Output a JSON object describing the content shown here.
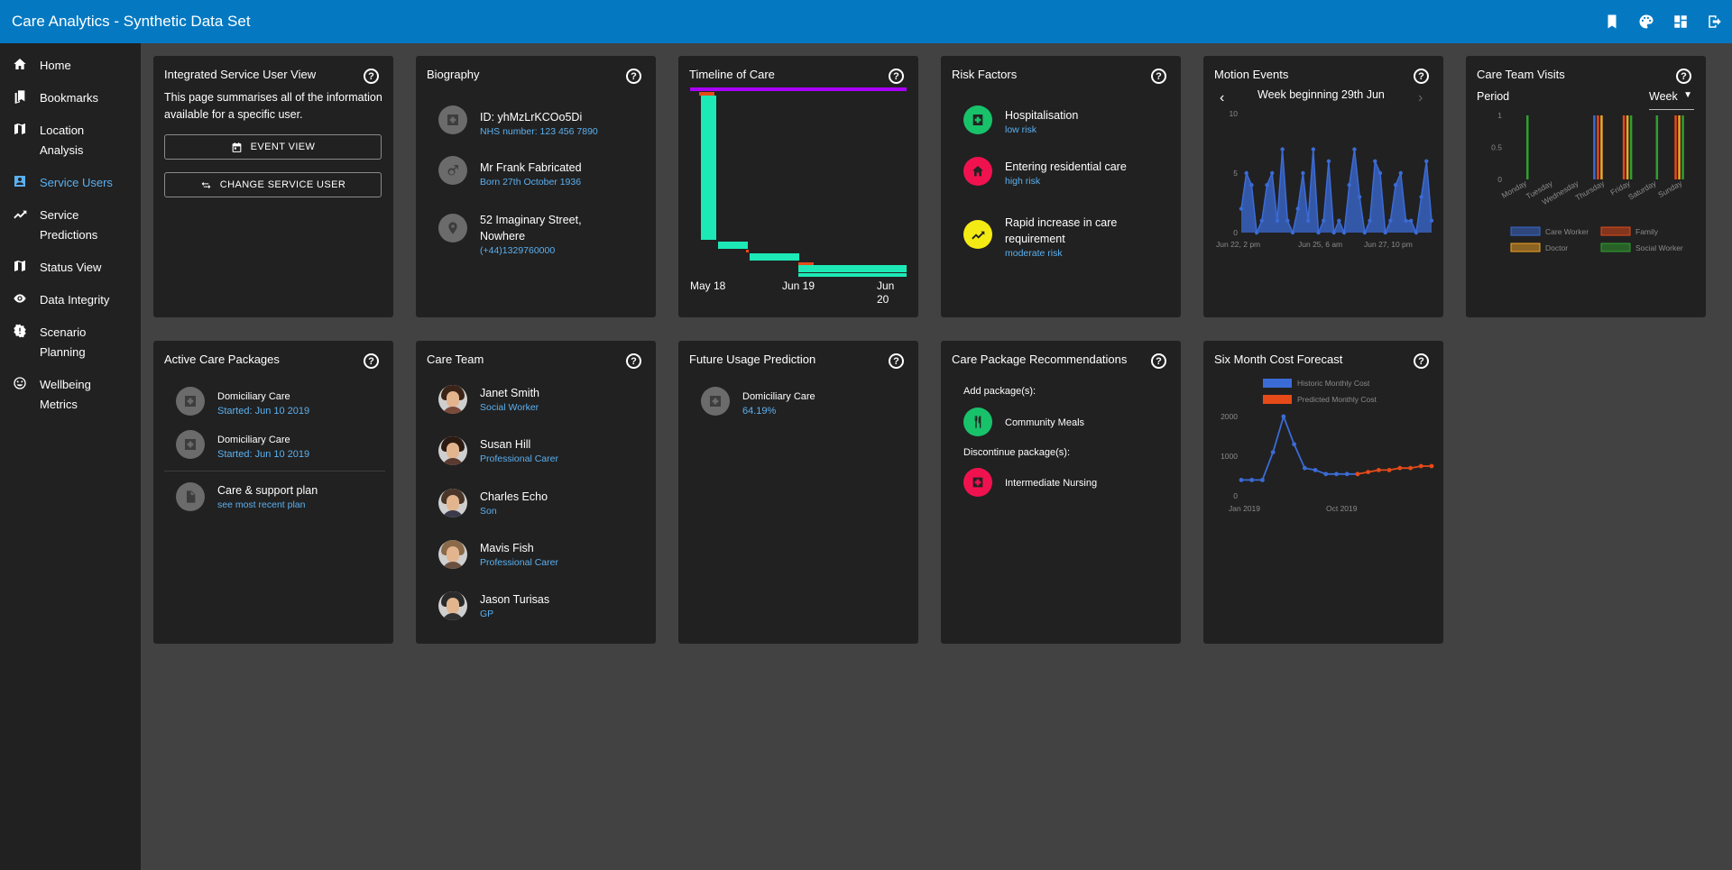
{
  "app": {
    "title": "Care Analytics - Synthetic Data Set"
  },
  "topbar": {
    "icons": [
      "bookmark-icon",
      "palette-icon",
      "dashboard-icon",
      "exit-icon"
    ]
  },
  "sidebar": {
    "items": [
      {
        "label": "Home",
        "icon": "home-icon",
        "active": false
      },
      {
        "label": "Bookmarks",
        "icon": "bookmarks-icon",
        "active": false
      },
      {
        "label": "Location Analysis",
        "icon": "map-icon",
        "active": false
      },
      {
        "label": "Service Users",
        "icon": "user-badge-icon",
        "active": true
      },
      {
        "label": "Service Predictions",
        "icon": "trending-up-icon",
        "active": false
      },
      {
        "label": "Status View",
        "icon": "map-icon",
        "active": false
      },
      {
        "label": "Data Integrity",
        "icon": "eye-icon",
        "active": false
      },
      {
        "label": "Scenario Planning",
        "icon": "alert-gear-icon",
        "active": false
      },
      {
        "label": "Wellbeing Metrics",
        "icon": "smiley-icon",
        "active": false
      }
    ]
  },
  "cards": {
    "integrated": {
      "title": "Integrated Service User View",
      "text": "This page summarises all of the information available for a specific user.",
      "event_view": "EVENT VIEW",
      "change_user": "CHANGE SERVICE USER"
    },
    "biography": {
      "title": "Biography",
      "items": [
        {
          "primary": "ID: yhMzLrKCOo5Di",
          "secondary": "NHS number: 123 456 7890",
          "icon": "medical-icon"
        },
        {
          "primary": "Mr Frank Fabricated",
          "secondary": "Born 27th October 1936",
          "icon": "gender-male-icon"
        },
        {
          "primary": "52 Imaginary Street, Nowhere",
          "secondary": "(+44)1329760000",
          "icon": "location-pin-icon"
        }
      ]
    },
    "timeline": {
      "title": "Timeline of Care",
      "labels": [
        "May 18",
        "Jun 19",
        "Jun 20"
      ]
    },
    "risk": {
      "title": "Risk Factors",
      "items": [
        {
          "primary": "Hospitalisation",
          "secondary": "low risk",
          "color": "#18c26a",
          "icon": "hospital-icon"
        },
        {
          "primary": "Entering residential care",
          "secondary": "high risk",
          "color": "#f0124f",
          "icon": "house-icon"
        },
        {
          "primary": "Rapid increase in care requirement",
          "secondary": "moderate risk",
          "color": "#f5eb14",
          "icon": "trending-up-icon"
        }
      ]
    },
    "motion": {
      "title": "Motion Events",
      "week": "Week beginning 29th Jun"
    },
    "visits": {
      "title": "Care Team Visits",
      "period_label": "Period",
      "period_value": "Week"
    },
    "packages": {
      "title": "Active Care Packages",
      "items": [
        {
          "primary": "Domiciliary Care",
          "secondary": "Started: Jun 10 2019"
        },
        {
          "primary": "Domiciliary Care",
          "secondary": "Started: Jun 10 2019"
        }
      ],
      "plan": {
        "primary": "Care & support plan",
        "secondary": "see most recent plan"
      }
    },
    "team": {
      "title": "Care Team",
      "members": [
        {
          "name": "Janet Smith",
          "role": "Social Worker",
          "hair": "#3b2417",
          "body": "#7a4a3a"
        },
        {
          "name": "Susan Hill",
          "role": "Professional Carer",
          "hair": "#2c1b12",
          "body": "#5a3a30"
        },
        {
          "name": "Charles Echo",
          "role": "Son",
          "hair": "#4a3628",
          "body": "#3a3a4a"
        },
        {
          "name": "Mavis Fish",
          "role": "Professional Carer",
          "hair": "#8a6a48",
          "body": "#6a5040"
        },
        {
          "name": "Jason Turisas",
          "role": "GP",
          "hair": "#2a2a2a",
          "body": "#303030"
        }
      ]
    },
    "future": {
      "title": "Future Usage Prediction",
      "item": {
        "primary": "Domiciliary Care",
        "secondary": "64.19%"
      }
    },
    "recommend": {
      "title": "Care Package Recommendations",
      "add_label": "Add package(s):",
      "add_item": {
        "label": "Community Meals",
        "color": "#18c26a",
        "icon": "cutlery-icon"
      },
      "discontinue_label": "Discontinue package(s):",
      "discontinue_item": {
        "label": "Intermediate Nursing",
        "color": "#f0124f",
        "icon": "medical-icon"
      }
    },
    "cost": {
      "title": "Six Month Cost Forecast"
    }
  },
  "chart_data": [
    {
      "id": "timeline",
      "type": "bar",
      "description_free": true,
      "x_labels": [
        "May 18",
        "Jun 19",
        "Jun 20"
      ],
      "colors": {
        "bar": "#1de9b6",
        "marker": "#e64a19",
        "range": "#aa00ff"
      }
    },
    {
      "id": "motion",
      "type": "area",
      "x_ticks": [
        "Jun 22, 2 pm",
        "Jun 25, 6 am",
        "Jun 27, 10 pm"
      ],
      "y_ticks": [
        0,
        5,
        10
      ],
      "ylim": [
        0,
        10
      ],
      "values": [
        2,
        5,
        4,
        0,
        1,
        4,
        5,
        1,
        7,
        1,
        0,
        2,
        5,
        1,
        7,
        0,
        1,
        6,
        0,
        1,
        0,
        4,
        7,
        3,
        0,
        1,
        6,
        5,
        0,
        1,
        4,
        5,
        1,
        1,
        0,
        3,
        6,
        1
      ],
      "color": "#3b6bd6"
    },
    {
      "id": "visits",
      "type": "bar",
      "categories": [
        "Monday",
        "Tuesday",
        "Wednesday",
        "Thursday",
        "Friday",
        "Saturday",
        "Sunday"
      ],
      "y_ticks": [
        0,
        0.5,
        1
      ],
      "ylim": [
        0,
        1
      ],
      "legend": [
        "Care Worker",
        "Family",
        "Doctor",
        "Social Worker"
      ],
      "colors": [
        "#3b6bd6",
        "#e64a19",
        "#f5a623",
        "#2fa12f"
      ],
      "series": [
        {
          "name": "Care Worker",
          "values": [
            0,
            0,
            0,
            1,
            0,
            0,
            0
          ]
        },
        {
          "name": "Family",
          "values": [
            0,
            0,
            0,
            1,
            1,
            0,
            1
          ]
        },
        {
          "name": "Doctor",
          "values": [
            0,
            0,
            0,
            1,
            1,
            0,
            1
          ]
        },
        {
          "name": "Social Worker",
          "values": [
            1,
            0,
            0,
            0,
            1,
            1,
            1
          ]
        }
      ]
    },
    {
      "id": "cost",
      "type": "line",
      "x_ticks": [
        "Jan 2019",
        "Oct 2019"
      ],
      "y_ticks": [
        0,
        1000,
        2000
      ],
      "ylim": [
        0,
        2500
      ],
      "legend": [
        "Historic Monthly Cost",
        "Predicted Monthly Cost"
      ],
      "series": [
        {
          "name": "Historic Monthly Cost",
          "color": "#3b6bd6",
          "values": [
            400,
            400,
            400,
            1100,
            2000,
            1300,
            700,
            650,
            550,
            550,
            550,
            550
          ]
        },
        {
          "name": "Predicted Monthly Cost",
          "color": "#e64a19",
          "start": 11,
          "values": [
            550,
            600,
            650,
            650,
            700,
            700,
            750,
            750
          ]
        }
      ]
    }
  ]
}
